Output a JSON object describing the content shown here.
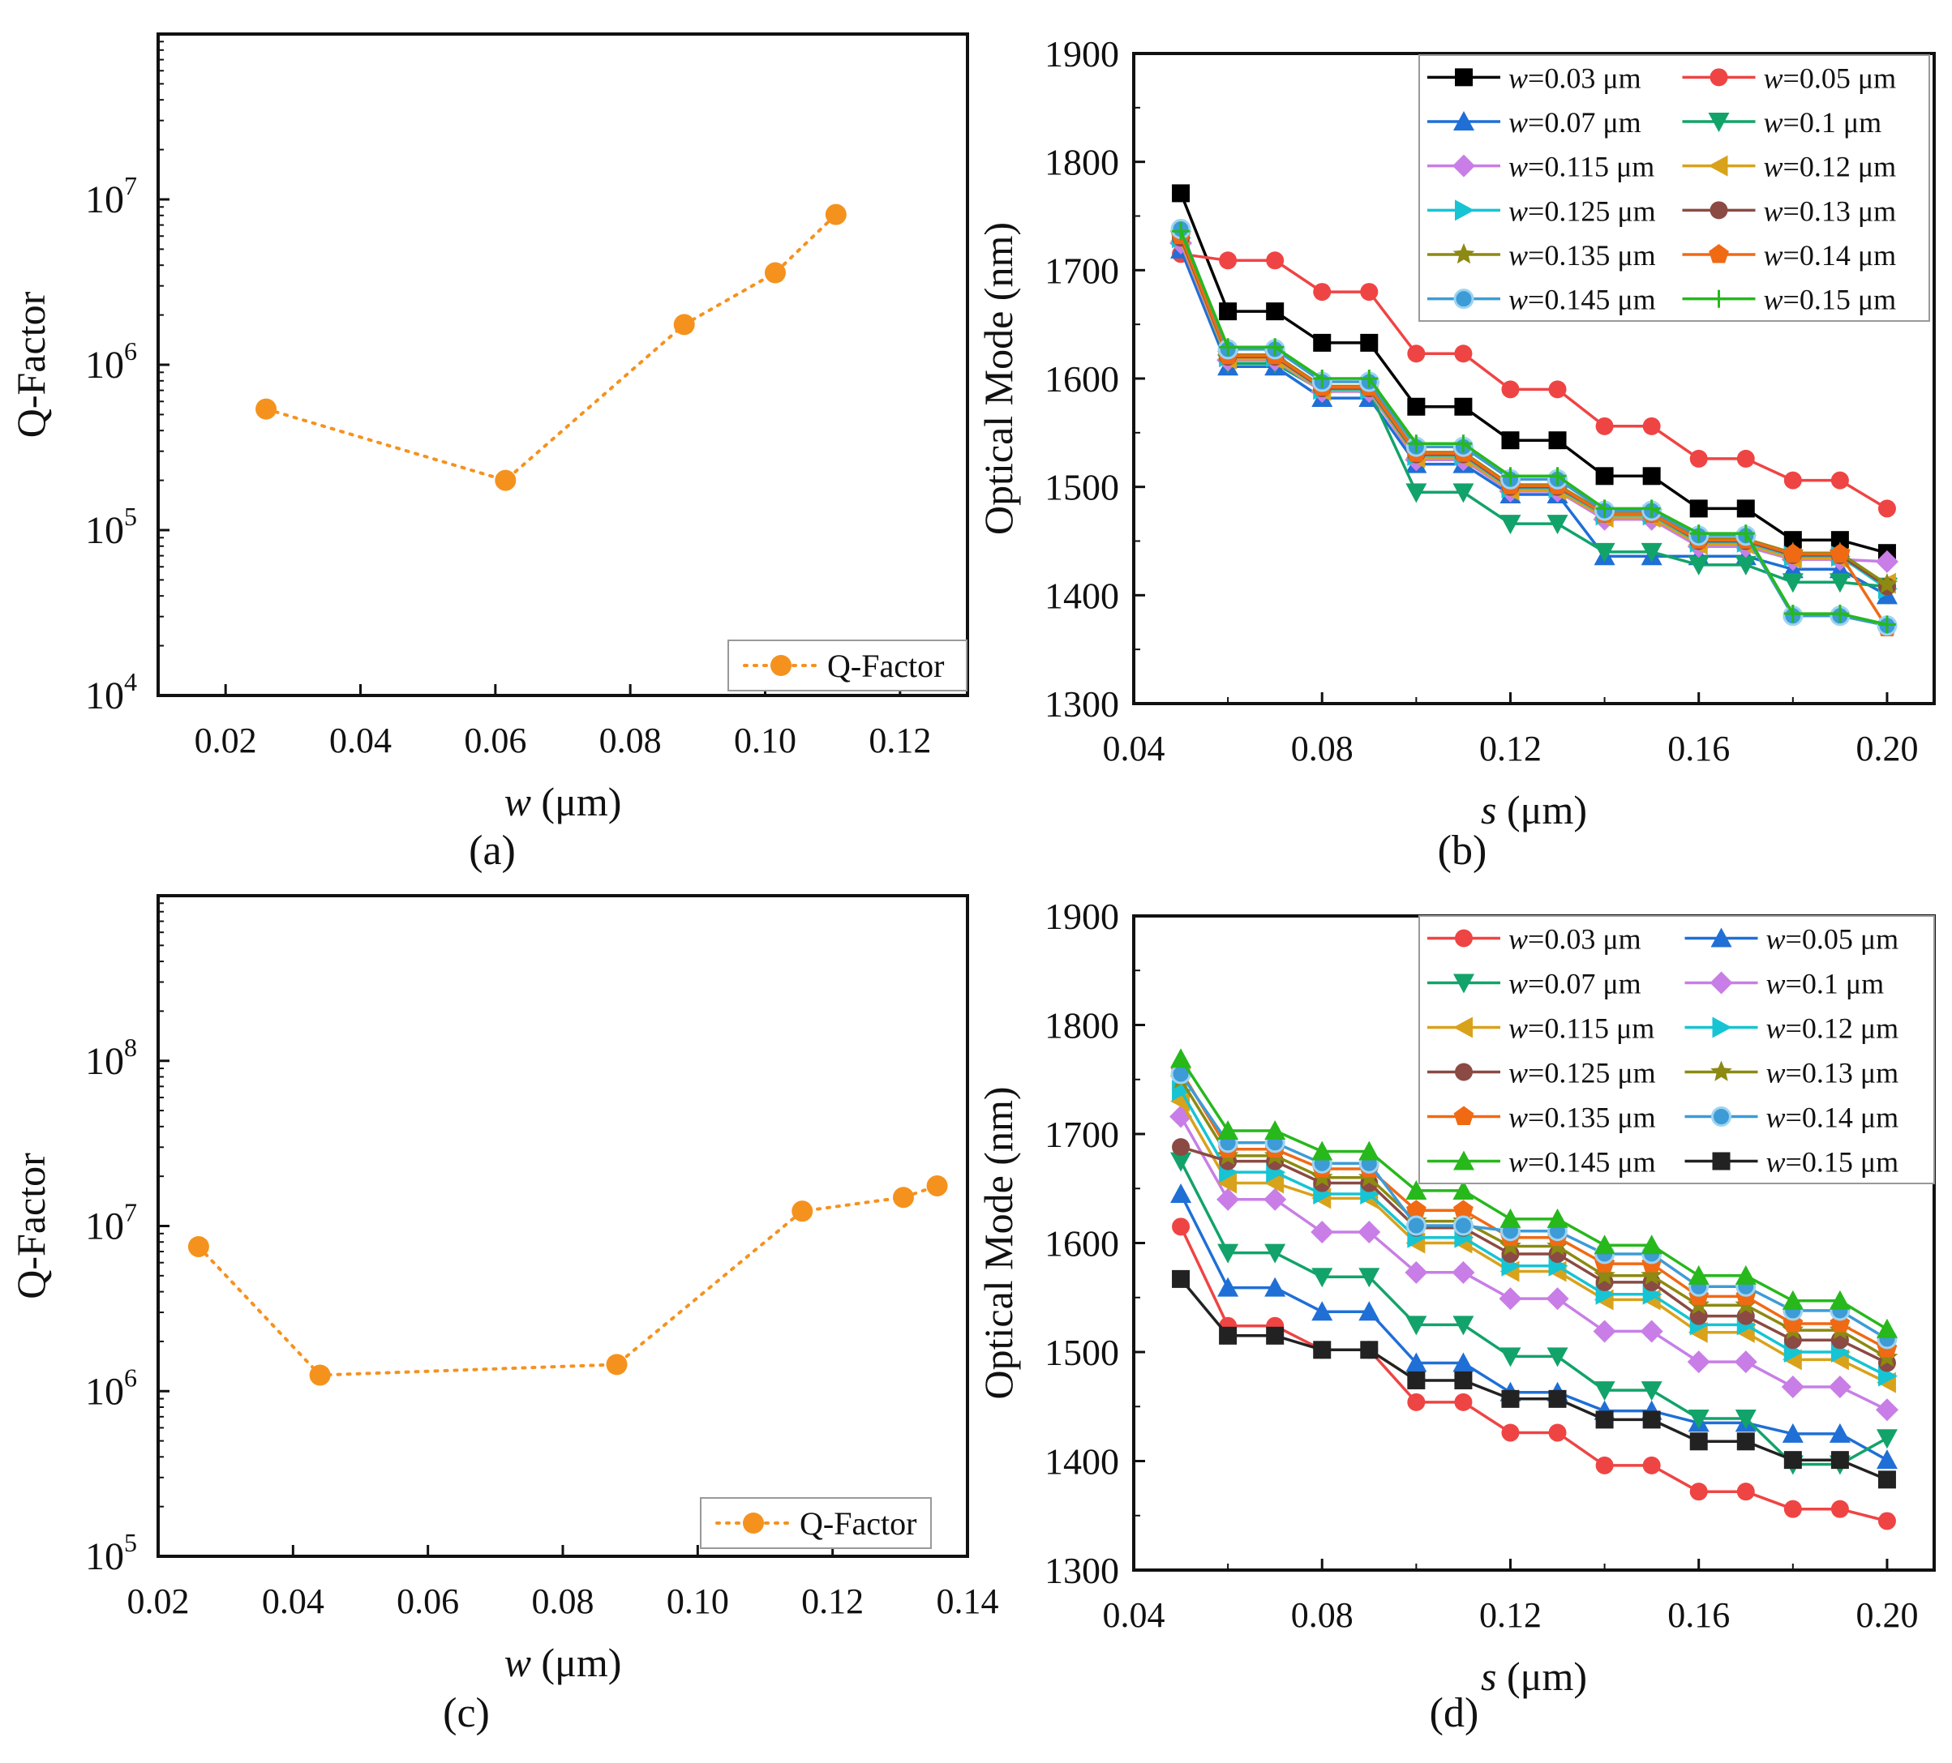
{
  "colors": {
    "black": "#000000",
    "red": "#ef4444",
    "blue": "#1f6fd6",
    "green": "#12a36a",
    "violet": "#c87ee6",
    "gold": "#d9a21b",
    "cyan": "#16c4d3",
    "brown": "#8b4a43",
    "olive": "#8c8a12",
    "orange": "#f06a14",
    "sky": "#3d9bd6",
    "lime": "#27b81c",
    "qfactor": "#f5921e"
  },
  "chart_data": [
    {
      "id": "a",
      "type": "line",
      "panel_label": "(a)",
      "xlabel_italic": "w",
      "xlabel_unit": " (μm)",
      "ylabel": "Q-Factor",
      "yscale": "log",
      "xlim": [
        0.01,
        0.13
      ],
      "ylim_exp": [
        4,
        8
      ],
      "xticks": [
        "0.02",
        "0.04",
        "0.06",
        "0.08",
        "0.10",
        "0.12"
      ],
      "ytick_exps": [
        4,
        5,
        6,
        7
      ],
      "legend": "Q-Factor",
      "legend_position": "bottom-right",
      "series": [
        {
          "name": "Q-Factor",
          "color": "#f5921e",
          "x": [
            0.026,
            0.0615,
            0.088,
            0.1015,
            0.1105
          ],
          "y": [
            540000,
            200000,
            1750000,
            3600000,
            8100000
          ]
        }
      ]
    },
    {
      "id": "b",
      "type": "line",
      "panel_label": "(b)",
      "xlabel_italic": "s",
      "xlabel_unit": " (μm)",
      "ylabel": "Optical Mode (nm)",
      "xlim": [
        0.04,
        0.21
      ],
      "ylim": [
        1300,
        1900
      ],
      "xticks": [
        "0.04",
        "0.08",
        "0.12",
        "0.16",
        "0.20"
      ],
      "yticks": [
        "1300",
        "1400",
        "1500",
        "1600",
        "1700",
        "1800",
        "1900"
      ],
      "x": [
        0.05,
        0.06,
        0.07,
        0.08,
        0.09,
        0.1,
        0.11,
        0.12,
        0.13,
        0.14,
        0.15,
        0.16,
        0.17,
        0.18,
        0.19,
        0.2
      ],
      "legend_position": "top-right",
      "series": [
        {
          "name": "=0.03 μm",
          "color": "#000000",
          "marker": "square",
          "values": [
            1771,
            1662,
            1662,
            1633,
            1633,
            1574,
            1574,
            1543,
            1543,
            1510,
            1510,
            1480,
            1480,
            1451,
            1451,
            1439
          ]
        },
        {
          "name": "=0.05 μm",
          "color": "#ef4444",
          "marker": "circle",
          "values": [
            1715,
            1709,
            1709,
            1680,
            1680,
            1623,
            1623,
            1590,
            1590,
            1556,
            1556,
            1526,
            1526,
            1506,
            1506,
            1480
          ]
        },
        {
          "name": "=0.07 μm",
          "color": "#1f6fd6",
          "marker": "triangle-up",
          "values": [
            1719,
            1611,
            1611,
            1582,
            1582,
            1521,
            1521,
            1493,
            1493,
            1436,
            1436,
            1436,
            1436,
            1424,
            1424,
            1400
          ]
        },
        {
          "name": "=0.1 μm",
          "color": "#12a36a",
          "marker": "triangle-down",
          "values": [
            1728,
            1614,
            1614,
            1589,
            1589,
            1495,
            1495,
            1466,
            1466,
            1440,
            1440,
            1428,
            1428,
            1412,
            1412,
            1408
          ]
        },
        {
          "name": "=0.115 μm",
          "color": "#c87ee6",
          "marker": "diamond",
          "values": [
            1725,
            1617,
            1617,
            1588,
            1588,
            1525,
            1525,
            1496,
            1496,
            1470,
            1470,
            1445,
            1445,
            1433,
            1433,
            1431
          ]
        },
        {
          "name": "=0.12 μm",
          "color": "#d9a21b",
          "marker": "triangle-left",
          "values": [
            1727,
            1618,
            1618,
            1589,
            1589,
            1527,
            1527,
            1497,
            1497,
            1472,
            1472,
            1447,
            1447,
            1434,
            1434,
            1411
          ]
        },
        {
          "name": "=0.125 μm",
          "color": "#16c4d3",
          "marker": "triangle-right",
          "values": [
            1730,
            1620,
            1620,
            1590,
            1590,
            1529,
            1529,
            1499,
            1499,
            1474,
            1474,
            1449,
            1449,
            1436,
            1436,
            1406
          ]
        },
        {
          "name": "=0.13 μm",
          "color": "#8b4a43",
          "marker": "circle",
          "values": [
            1730,
            1620,
            1620,
            1591,
            1591,
            1530,
            1530,
            1500,
            1500,
            1475,
            1475,
            1450,
            1450,
            1437,
            1437,
            1408
          ]
        },
        {
          "name": "=0.135 μm",
          "color": "#8c8a12",
          "marker": "star",
          "values": [
            1733,
            1622,
            1622,
            1593,
            1593,
            1532,
            1532,
            1502,
            1502,
            1476,
            1476,
            1452,
            1452,
            1439,
            1439,
            1410
          ]
        },
        {
          "name": "=0.14 μm",
          "color": "#f06a14",
          "marker": "pentagon",
          "values": [
            1732,
            1621,
            1621,
            1592,
            1592,
            1531,
            1531,
            1501,
            1501,
            1475,
            1475,
            1451,
            1451,
            1438,
            1438,
            1370
          ]
        },
        {
          "name": "=0.145 μm",
          "color": "#3d9bd6",
          "marker": "circle-hatch",
          "values": [
            1738,
            1627,
            1627,
            1597,
            1597,
            1537,
            1537,
            1507,
            1507,
            1478,
            1478,
            1455,
            1455,
            1381,
            1381,
            1372
          ]
        },
        {
          "name": "=0.15 μm",
          "color": "#27b81c",
          "marker": "plus",
          "values": [
            1736,
            1629,
            1629,
            1600,
            1600,
            1540,
            1540,
            1510,
            1510,
            1480,
            1480,
            1457,
            1457,
            1383,
            1383,
            1373
          ]
        }
      ]
    },
    {
      "id": "c",
      "type": "line",
      "panel_label": "(c)",
      "xlabel_italic": "w",
      "xlabel_unit": " (μm)",
      "ylabel": "Q-Factor",
      "yscale": "log",
      "xlim": [
        0.02,
        0.14
      ],
      "ylim_exp": [
        5,
        9
      ],
      "xticks": [
        "0.02",
        "0.04",
        "0.06",
        "0.08",
        "0.10",
        "0.12",
        "0.14"
      ],
      "ytick_exps": [
        5,
        6,
        7,
        8
      ],
      "legend": "Q-Factor",
      "legend_position": "bottom-right",
      "series": [
        {
          "name": "Q-Factor",
          "color": "#f5921e",
          "x": [
            0.026,
            0.044,
            0.088,
            0.1155,
            0.1305,
            0.1355
          ],
          "y": [
            7500000,
            1250000,
            1450000,
            12300000,
            14900000,
            17500000
          ]
        }
      ]
    },
    {
      "id": "d",
      "type": "line",
      "panel_label": "(d)",
      "xlabel_italic": "s",
      "xlabel_unit": " (μm)",
      "ylabel": "Optical Mode (nm)",
      "xlim": [
        0.04,
        0.21
      ],
      "ylim": [
        1300,
        1900
      ],
      "xticks": [
        "0.04",
        "0.08",
        "0.12",
        "0.16",
        "0.20"
      ],
      "yticks": [
        "1300",
        "1400",
        "1500",
        "1600",
        "1700",
        "1800",
        "1900"
      ],
      "x": [
        0.05,
        0.06,
        0.07,
        0.08,
        0.09,
        0.1,
        0.11,
        0.12,
        0.13,
        0.14,
        0.15,
        0.16,
        0.17,
        0.18,
        0.19,
        0.2
      ],
      "legend_position": "top-right",
      "series": [
        {
          "name": "=0.03 μm",
          "color": "#ef4444",
          "marker": "circle",
          "values": [
            1615,
            1524,
            1524,
            1502,
            1502,
            1454,
            1454,
            1426,
            1426,
            1396,
            1396,
            1372,
            1372,
            1356,
            1356,
            1345
          ]
        },
        {
          "name": "=0.05 μm",
          "color": "#1f6fd6",
          "marker": "triangle-up",
          "values": [
            1645,
            1559,
            1559,
            1537,
            1537,
            1490,
            1490,
            1463,
            1463,
            1446,
            1446,
            1435,
            1435,
            1425,
            1425,
            1401
          ]
        },
        {
          "name": "=0.07 μm",
          "color": "#12a36a",
          "marker": "triangle-down",
          "values": [
            1675,
            1591,
            1591,
            1569,
            1569,
            1525,
            1525,
            1496,
            1496,
            1465,
            1465,
            1439,
            1439,
            1397,
            1397,
            1421
          ]
        },
        {
          "name": "=0.1 μm",
          "color": "#c87ee6",
          "marker": "diamond",
          "values": [
            1716,
            1640,
            1640,
            1610,
            1610,
            1573,
            1573,
            1549,
            1549,
            1519,
            1519,
            1491,
            1491,
            1468,
            1468,
            1447
          ]
        },
        {
          "name": "=0.115 μm",
          "color": "#d9a21b",
          "marker": "triangle-left",
          "values": [
            1730,
            1655,
            1655,
            1641,
            1641,
            1600,
            1600,
            1574,
            1574,
            1548,
            1548,
            1518,
            1518,
            1493,
            1493,
            1472
          ]
        },
        {
          "name": "=0.12 μm",
          "color": "#16c4d3",
          "marker": "triangle-right",
          "values": [
            1740,
            1665,
            1665,
            1645,
            1645,
            1605,
            1605,
            1579,
            1579,
            1553,
            1553,
            1525,
            1525,
            1500,
            1500,
            1478
          ]
        },
        {
          "name": "=0.125 μm",
          "color": "#8b4a43",
          "marker": "circle",
          "values": [
            1688,
            1675,
            1675,
            1655,
            1655,
            1614,
            1614,
            1590,
            1590,
            1564,
            1564,
            1533,
            1533,
            1511,
            1511,
            1490
          ]
        },
        {
          "name": "=0.13 μm",
          "color": "#8c8a12",
          "marker": "star",
          "values": [
            1750,
            1680,
            1680,
            1660,
            1660,
            1620,
            1620,
            1597,
            1597,
            1570,
            1570,
            1543,
            1543,
            1520,
            1520,
            1495
          ]
        },
        {
          "name": "=0.135 μm",
          "color": "#f06a14",
          "marker": "pentagon",
          "values": [
            1758,
            1686,
            1686,
            1668,
            1668,
            1630,
            1630,
            1605,
            1605,
            1581,
            1581,
            1551,
            1551,
            1526,
            1526,
            1503
          ]
        },
        {
          "name": "=0.14 μm",
          "color": "#3d9bd6",
          "marker": "circle-hatch",
          "values": [
            1755,
            1692,
            1692,
            1673,
            1673,
            1616,
            1616,
            1611,
            1611,
            1590,
            1590,
            1560,
            1560,
            1538,
            1538,
            1512
          ]
        },
        {
          "name": "=0.145 μm",
          "color": "#27b81c",
          "marker": "triangle-up",
          "values": [
            1769,
            1703,
            1703,
            1684,
            1684,
            1648,
            1648,
            1622,
            1622,
            1598,
            1598,
            1570,
            1570,
            1547,
            1547,
            1521
          ]
        },
        {
          "name": "=0.15 μm",
          "color": "#222222",
          "marker": "square",
          "values": [
            1567,
            1515,
            1515,
            1502,
            1502,
            1474,
            1474,
            1457,
            1457,
            1438,
            1438,
            1418,
            1418,
            1401,
            1401,
            1383
          ]
        }
      ]
    }
  ]
}
